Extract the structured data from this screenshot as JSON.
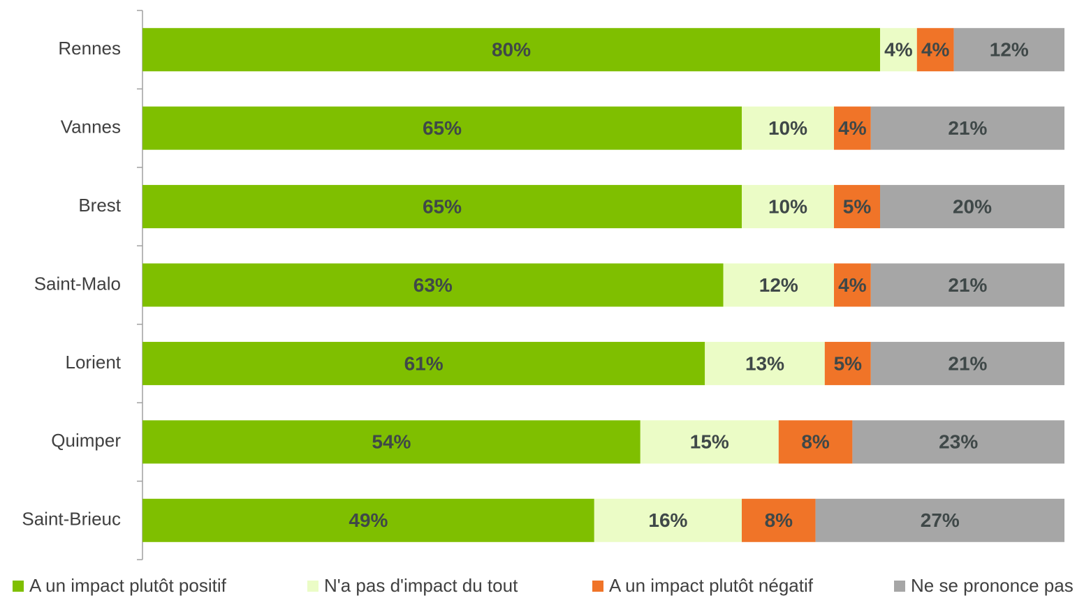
{
  "chart_data": {
    "type": "stacked_bar_horizontal",
    "categories": [
      "Rennes",
      "Vannes",
      "Brest",
      "Saint-Malo",
      "Lorient",
      "Quimper",
      "Saint-Brieuc"
    ],
    "xlim": [
      0,
      100
    ],
    "series": [
      {
        "name": "A un impact plutôt positif",
        "color": "#7fbf00",
        "values": [
          80,
          65,
          65,
          63,
          61,
          54,
          49
        ],
        "value_labels": [
          "80%",
          "65%",
          "65%",
          "63%",
          "61%",
          "54%",
          "49%"
        ]
      },
      {
        "name": "N'a pas d'impact du tout",
        "color": "#ebfcc6",
        "values": [
          4,
          10,
          10,
          12,
          13,
          15,
          16
        ],
        "value_labels": [
          "4%",
          "10%",
          "10%",
          "12%",
          "13%",
          "15%",
          "16%"
        ]
      },
      {
        "name": "A un impact plutôt négatif",
        "color": "#f07428",
        "values": [
          4,
          4,
          5,
          4,
          5,
          8,
          8
        ],
        "value_labels": [
          "4%",
          "4%",
          "5%",
          "4%",
          "5%",
          "8%",
          "8%"
        ]
      },
      {
        "name": "Ne se prononce pas",
        "color": "#a6a6a6",
        "values": [
          12,
          21,
          20,
          21,
          21,
          23,
          27
        ],
        "value_labels": [
          "12%",
          "21%",
          "20%",
          "21%",
          "21%",
          "23%",
          "27%"
        ]
      }
    ]
  }
}
